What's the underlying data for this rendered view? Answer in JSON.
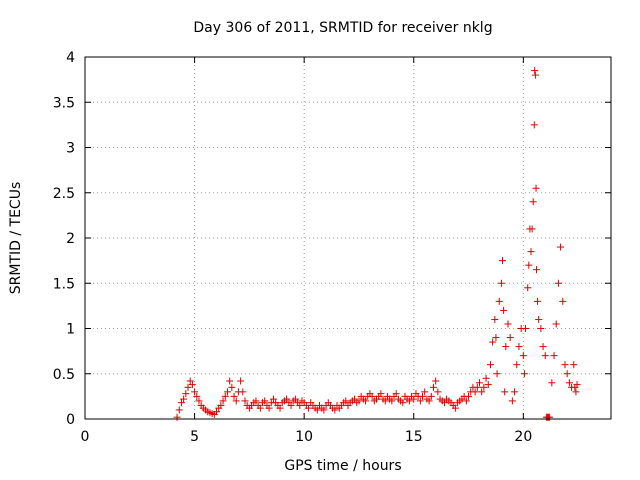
{
  "chart_data": {
    "type": "scatter",
    "title": "Day 306 of 2011, SRMTID for receiver nklg",
    "xlabel": "GPS time / hours",
    "ylabel": "SRMTID / TECUs",
    "xlim": [
      0,
      24
    ],
    "ylim": [
      0,
      4
    ],
    "xticks": [
      0,
      5,
      10,
      15,
      20
    ],
    "xtick_labels": [
      "0",
      "5",
      "10",
      "15",
      "20"
    ],
    "yticks": [
      0,
      0.5,
      1,
      1.5,
      2,
      2.5,
      3,
      3.5,
      4
    ],
    "ytick_labels": [
      "0",
      "0.5",
      "1",
      "1.5",
      "2",
      "2.5",
      "3",
      "3.5",
      "4"
    ],
    "grid": true,
    "marker": "+",
    "color": "#e00000",
    "series": [
      {
        "name": "SRMTID",
        "points": [
          [
            4.2,
            0.02
          ],
          [
            4.3,
            0.1
          ],
          [
            4.4,
            0.18
          ],
          [
            4.5,
            0.22
          ],
          [
            4.6,
            0.28
          ],
          [
            4.7,
            0.35
          ],
          [
            4.8,
            0.42
          ],
          [
            4.9,
            0.38
          ],
          [
            5.0,
            0.3
          ],
          [
            5.1,
            0.25
          ],
          [
            5.2,
            0.2
          ],
          [
            5.3,
            0.15
          ],
          [
            5.4,
            0.12
          ],
          [
            5.5,
            0.1
          ],
          [
            5.6,
            0.08
          ],
          [
            5.7,
            0.07
          ],
          [
            5.8,
            0.06
          ],
          [
            5.9,
            0.05
          ],
          [
            6.0,
            0.08
          ],
          [
            6.1,
            0.12
          ],
          [
            6.2,
            0.15
          ],
          [
            6.3,
            0.2
          ],
          [
            6.4,
            0.25
          ],
          [
            6.5,
            0.3
          ],
          [
            6.6,
            0.42
          ],
          [
            6.7,
            0.35
          ],
          [
            6.8,
            0.25
          ],
          [
            6.9,
            0.2
          ],
          [
            7.0,
            0.3
          ],
          [
            7.1,
            0.42
          ],
          [
            7.2,
            0.3
          ],
          [
            7.3,
            0.2
          ],
          [
            7.4,
            0.15
          ],
          [
            7.5,
            0.12
          ],
          [
            7.6,
            0.15
          ],
          [
            7.7,
            0.18
          ],
          [
            7.8,
            0.2
          ],
          [
            7.9,
            0.15
          ],
          [
            8.0,
            0.12
          ],
          [
            8.1,
            0.18
          ],
          [
            8.2,
            0.2
          ],
          [
            8.3,
            0.15
          ],
          [
            8.4,
            0.12
          ],
          [
            8.5,
            0.18
          ],
          [
            8.6,
            0.22
          ],
          [
            8.7,
            0.18
          ],
          [
            8.8,
            0.15
          ],
          [
            8.9,
            0.12
          ],
          [
            9.0,
            0.18
          ],
          [
            9.1,
            0.2
          ],
          [
            9.2,
            0.22
          ],
          [
            9.3,
            0.18
          ],
          [
            9.4,
            0.15
          ],
          [
            9.5,
            0.2
          ],
          [
            9.6,
            0.22
          ],
          [
            9.7,
            0.18
          ],
          [
            9.8,
            0.15
          ],
          [
            9.9,
            0.2
          ],
          [
            10.0,
            0.18
          ],
          [
            10.1,
            0.15
          ],
          [
            10.2,
            0.12
          ],
          [
            10.3,
            0.18
          ],
          [
            10.4,
            0.15
          ],
          [
            10.5,
            0.12
          ],
          [
            10.6,
            0.1
          ],
          [
            10.7,
            0.15
          ],
          [
            10.8,
            0.12
          ],
          [
            10.9,
            0.1
          ],
          [
            11.0,
            0.15
          ],
          [
            11.1,
            0.18
          ],
          [
            11.2,
            0.15
          ],
          [
            11.3,
            0.12
          ],
          [
            11.4,
            0.1
          ],
          [
            11.5,
            0.15
          ],
          [
            11.6,
            0.12
          ],
          [
            11.7,
            0.15
          ],
          [
            11.8,
            0.18
          ],
          [
            11.9,
            0.2
          ],
          [
            12.0,
            0.15
          ],
          [
            12.1,
            0.18
          ],
          [
            12.2,
            0.2
          ],
          [
            12.3,
            0.22
          ],
          [
            12.4,
            0.18
          ],
          [
            12.5,
            0.2
          ],
          [
            12.6,
            0.25
          ],
          [
            12.7,
            0.22
          ],
          [
            12.8,
            0.2
          ],
          [
            12.9,
            0.25
          ],
          [
            13.0,
            0.28
          ],
          [
            13.1,
            0.25
          ],
          [
            13.2,
            0.2
          ],
          [
            13.3,
            0.22
          ],
          [
            13.4,
            0.25
          ],
          [
            13.5,
            0.28
          ],
          [
            13.6,
            0.22
          ],
          [
            13.7,
            0.2
          ],
          [
            13.8,
            0.25
          ],
          [
            13.9,
            0.22
          ],
          [
            14.0,
            0.2
          ],
          [
            14.1,
            0.25
          ],
          [
            14.2,
            0.28
          ],
          [
            14.3,
            0.22
          ],
          [
            14.4,
            0.2
          ],
          [
            14.5,
            0.18
          ],
          [
            14.6,
            0.25
          ],
          [
            14.7,
            0.22
          ],
          [
            14.8,
            0.2
          ],
          [
            14.9,
            0.25
          ],
          [
            15.0,
            0.22
          ],
          [
            15.1,
            0.28
          ],
          [
            15.2,
            0.25
          ],
          [
            15.3,
            0.2
          ],
          [
            15.4,
            0.25
          ],
          [
            15.5,
            0.3
          ],
          [
            15.6,
            0.22
          ],
          [
            15.7,
            0.2
          ],
          [
            15.8,
            0.25
          ],
          [
            15.9,
            0.35
          ],
          [
            16.0,
            0.42
          ],
          [
            16.1,
            0.3
          ],
          [
            16.2,
            0.22
          ],
          [
            16.3,
            0.2
          ],
          [
            16.4,
            0.18
          ],
          [
            16.5,
            0.22
          ],
          [
            16.6,
            0.2
          ],
          [
            16.7,
            0.18
          ],
          [
            16.8,
            0.15
          ],
          [
            16.9,
            0.12
          ],
          [
            17.0,
            0.18
          ],
          [
            17.1,
            0.2
          ],
          [
            17.2,
            0.22
          ],
          [
            17.3,
            0.25
          ],
          [
            17.4,
            0.2
          ],
          [
            17.5,
            0.25
          ],
          [
            17.6,
            0.3
          ],
          [
            17.7,
            0.35
          ],
          [
            17.8,
            0.3
          ],
          [
            17.9,
            0.35
          ],
          [
            18.0,
            0.4
          ],
          [
            18.1,
            0.3
          ],
          [
            18.2,
            0.35
          ],
          [
            18.3,
            0.45
          ],
          [
            18.4,
            0.38
          ],
          [
            18.5,
            0.6
          ],
          [
            18.6,
            0.85
          ],
          [
            18.7,
            1.1
          ],
          [
            18.75,
            0.9
          ],
          [
            18.8,
            0.5
          ],
          [
            18.9,
            1.3
          ],
          [
            19.0,
            1.5
          ],
          [
            19.05,
            1.75
          ],
          [
            19.1,
            1.2
          ],
          [
            19.15,
            0.3
          ],
          [
            19.2,
            0.8
          ],
          [
            19.3,
            1.05
          ],
          [
            19.4,
            0.9
          ],
          [
            19.5,
            0.2
          ],
          [
            19.6,
            0.3
          ],
          [
            19.7,
            0.6
          ],
          [
            19.8,
            0.8
          ],
          [
            19.9,
            1.0
          ],
          [
            20.0,
            0.7
          ],
          [
            20.05,
            0.5
          ],
          [
            20.1,
            1.0
          ],
          [
            20.2,
            1.45
          ],
          [
            20.25,
            1.7
          ],
          [
            20.3,
            2.1
          ],
          [
            20.35,
            1.85
          ],
          [
            20.4,
            2.1
          ],
          [
            20.45,
            2.4
          ],
          [
            20.5,
            3.25
          ],
          [
            20.52,
            3.85
          ],
          [
            20.55,
            3.8
          ],
          [
            20.58,
            2.55
          ],
          [
            20.6,
            1.65
          ],
          [
            20.65,
            1.3
          ],
          [
            20.7,
            1.1
          ],
          [
            20.8,
            1.0
          ],
          [
            20.9,
            0.8
          ],
          [
            21.0,
            0.7
          ],
          [
            21.05,
            0.02
          ],
          [
            21.1,
            0.02
          ],
          [
            21.15,
            0.02
          ],
          [
            21.2,
            0.02
          ],
          [
            21.3,
            0.4
          ],
          [
            21.4,
            0.7
          ],
          [
            21.5,
            1.05
          ],
          [
            21.6,
            1.5
          ],
          [
            21.7,
            1.9
          ],
          [
            21.8,
            1.3
          ],
          [
            21.9,
            0.6
          ],
          [
            22.0,
            0.5
          ],
          [
            22.1,
            0.4
          ],
          [
            22.2,
            0.35
          ],
          [
            22.3,
            0.6
          ],
          [
            22.35,
            0.35
          ],
          [
            22.4,
            0.3
          ],
          [
            22.45,
            0.38
          ]
        ]
      }
    ]
  }
}
